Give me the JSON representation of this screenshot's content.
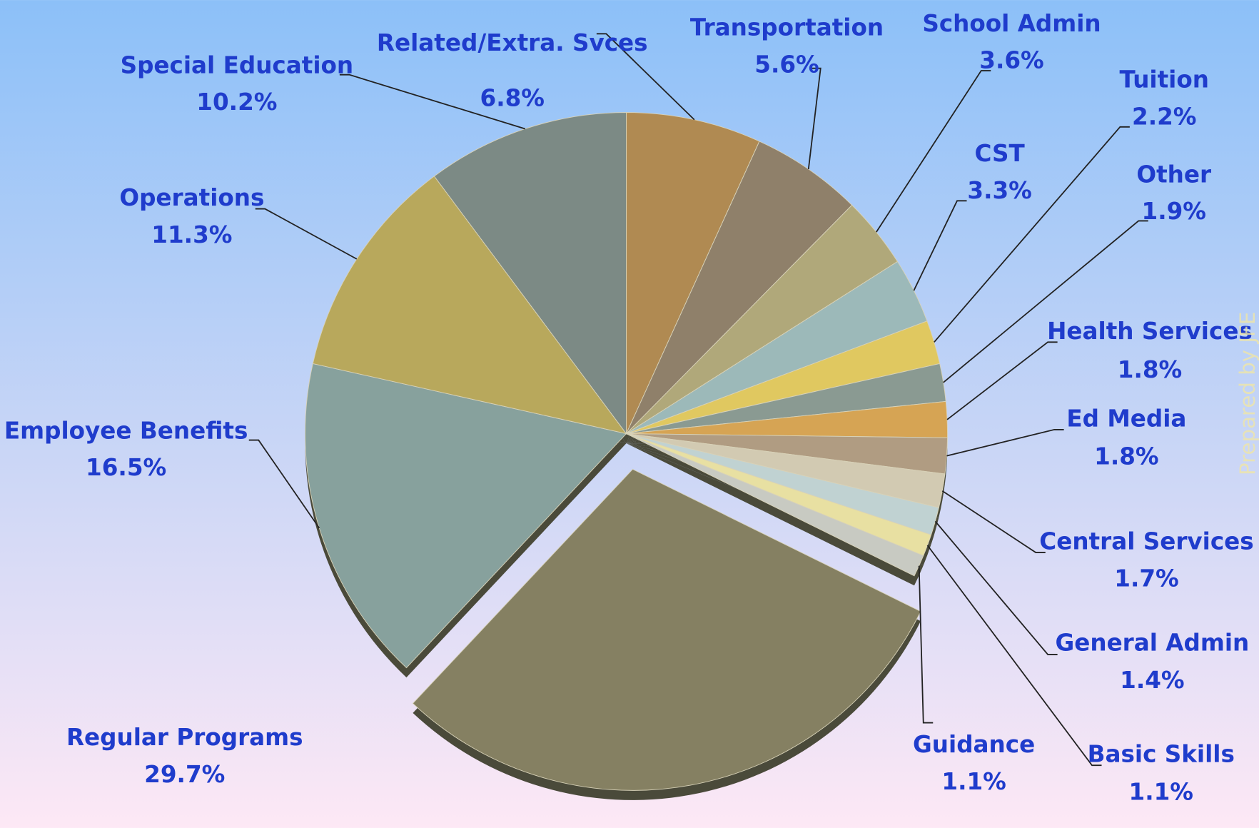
{
  "chart_data": {
    "type": "pie",
    "categories": [
      "Related/Extra. Svces",
      "Transportation",
      "School Admin",
      "CST",
      "Tuition",
      "Other",
      "Health Services",
      "Ed Media",
      "Central Services",
      "General Admin",
      "Basic Skills",
      "Guidance",
      "Regular Programs",
      "Employee Benefits",
      "Operations",
      "Special Education"
    ],
    "values": [
      6.8,
      5.6,
      3.6,
      3.3,
      2.2,
      1.9,
      1.8,
      1.8,
      1.7,
      1.4,
      1.1,
      1.1,
      29.7,
      16.5,
      11.3,
      10.2
    ],
    "value_labels": [
      "6.8%",
      "5.6%",
      "3.6%",
      "3.3%",
      "2.2%",
      "1.9%",
      "1.8%",
      "1.8%",
      "1.7%",
      "1.4%",
      "1.1%",
      "1.1%",
      "29.7%",
      "16.5%",
      "11.3%",
      "10.2%"
    ],
    "colors": [
      "#b08a52",
      "#8f806a",
      "#b0a87a",
      "#9cb9b9",
      "#e0c860",
      "#8a9a92",
      "#d6a454",
      "#b09c82",
      "#d2cab2",
      "#c0d2d2",
      "#e8e0a2",
      "#c8cac2",
      "#858062",
      "#87a19d",
      "#b8a85c",
      "#7c8a85"
    ],
    "exploded": "Regular Programs",
    "annotations": [
      "Prepared by JFE"
    ]
  }
}
